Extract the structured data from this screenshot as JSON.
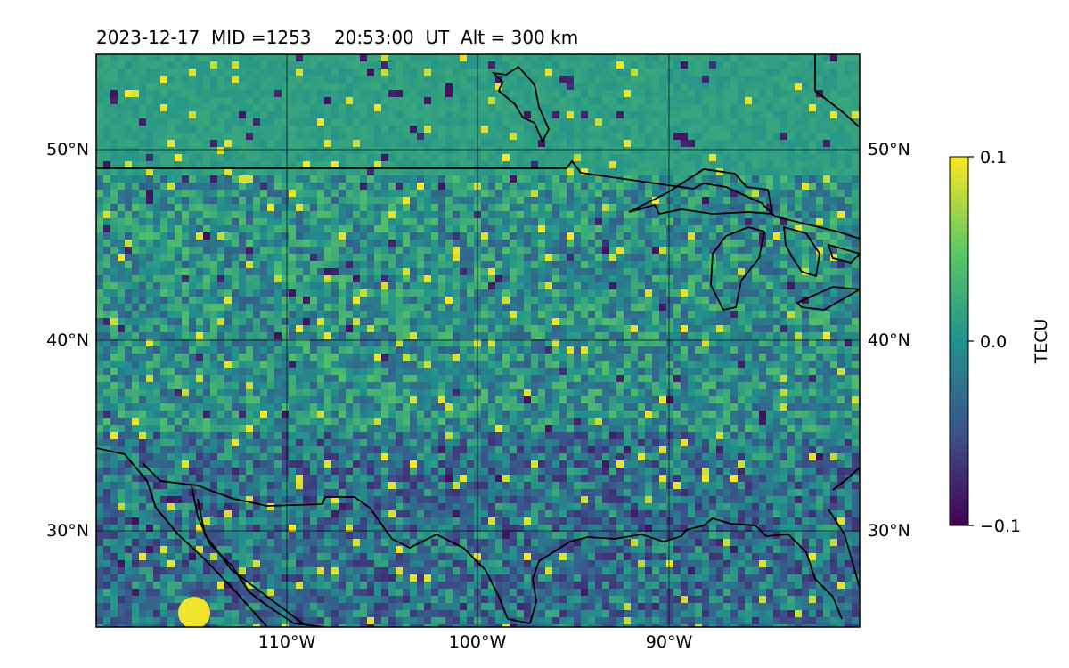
{
  "title": "2023-12-17  MID =1253    20:53:00  UT  Alt = 300 km",
  "map": {
    "lat_labels": [
      "50°N",
      "40°N",
      "30°N"
    ],
    "lon_labels": [
      "110°W",
      "100°W",
      "90°W"
    ],
    "lat_range": [
      25,
      55
    ],
    "lon_range": [
      -120,
      -80
    ],
    "gridlines": true,
    "colormap": "viridis"
  },
  "colorbar": {
    "label": "TECU",
    "ticks": [
      "0.1",
      "0.0",
      "−0.1"
    ],
    "range": [
      -0.1,
      0.1
    ],
    "colors": [
      "#440154",
      "#3b528b",
      "#21918c",
      "#5ec962",
      "#fde725"
    ]
  }
}
